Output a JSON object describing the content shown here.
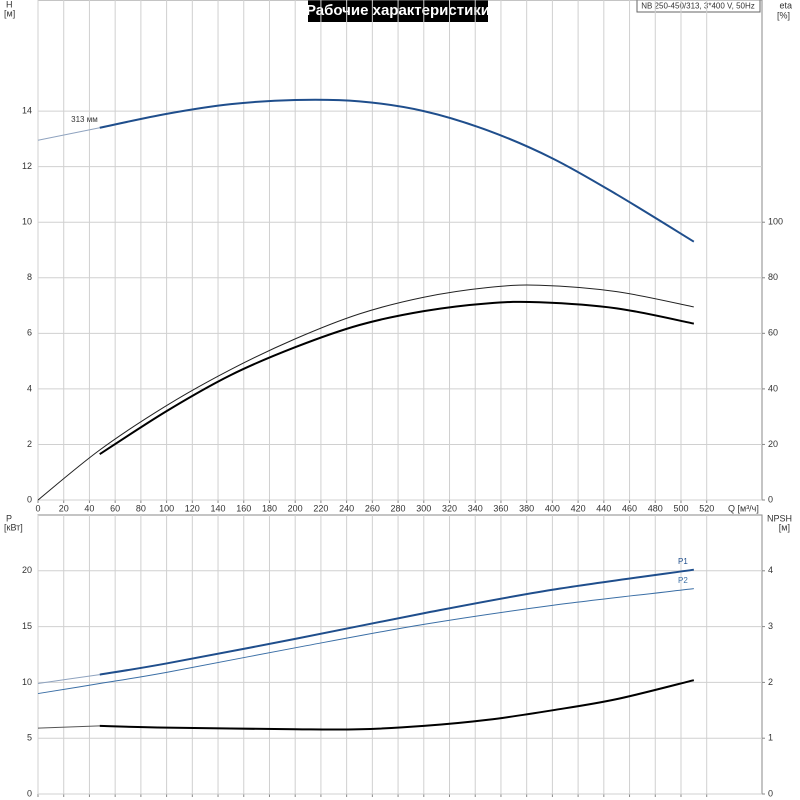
{
  "header": {
    "title": "Рабочие характеристики",
    "model": "NB 250-450/313, 3*400 V, 50Hz"
  },
  "chart_data": [
    {
      "type": "line",
      "ylabel": "H",
      "yunit": "[м]",
      "y2label": "eta",
      "y2unit": "[%]",
      "xlabel": "Q [м³/ч]",
      "xlim": [
        0,
        563
      ],
      "xticks": [
        0,
        20,
        40,
        60,
        80,
        100,
        120,
        140,
        160,
        180,
        200,
        220,
        240,
        260,
        280,
        300,
        320,
        340,
        360,
        380,
        400,
        420,
        440,
        460,
        480,
        500,
        520
      ],
      "xtick_labels": true,
      "ylim": [
        0,
        18
      ],
      "yticks": [
        0,
        2,
        4,
        6,
        8,
        10,
        12,
        14
      ],
      "y2lim": [
        0,
        180
      ],
      "y2ticks": [
        0,
        20,
        40,
        60,
        80,
        100
      ],
      "grid": true,
      "series": [
        {
          "color": "#8fa3bf",
          "width": 1,
          "x": [
            0,
            48
          ],
          "values": [
            12.95,
            13.4
          ]
        },
        {
          "name": "313 мм",
          "label_pos": "start",
          "color": "#1f4e8c",
          "width": 2,
          "x": [
            48,
            100,
            150,
            200,
            250,
            300,
            350,
            400,
            450,
            510
          ],
          "values": [
            13.4,
            13.9,
            14.25,
            14.4,
            14.35,
            14.0,
            13.3,
            12.3,
            11.0,
            9.3
          ]
        },
        {
          "color": "#222222",
          "width": 1,
          "axis": "y2",
          "x": [
            0,
            48,
            100,
            150,
            200,
            250,
            300,
            350,
            390,
            450,
            510
          ],
          "values": [
            0,
            18,
            34,
            47,
            58,
            67,
            73,
            76.5,
            77.3,
            75,
            69.5
          ]
        },
        {
          "color": "#000000",
          "width": 2,
          "axis": "y2",
          "x": [
            48,
            100,
            150,
            200,
            250,
            300,
            350,
            390,
            450,
            510
          ],
          "values": [
            16.5,
            32,
            45,
            55,
            63,
            68,
            70.8,
            71.2,
            69,
            63.5
          ]
        }
      ]
    },
    {
      "type": "line",
      "ylabel": "P",
      "yunit": "[кВт]",
      "y2label": "NPSH",
      "y2unit": "[м]",
      "xlim": [
        0,
        563
      ],
      "xticks": [
        0,
        20,
        40,
        60,
        80,
        100,
        120,
        140,
        160,
        180,
        200,
        220,
        240,
        260,
        280,
        300,
        320,
        340,
        360,
        380,
        400,
        420,
        440,
        460,
        480,
        500,
        520
      ],
      "xtick_labels": false,
      "ylim": [
        0,
        25
      ],
      "yticks": [
        0,
        5,
        10,
        15,
        20
      ],
      "y2lim": [
        0,
        5
      ],
      "y2ticks": [
        0,
        1,
        2,
        3,
        4
      ],
      "grid": true,
      "series": [
        {
          "color": "#8fa3bf",
          "width": 1,
          "x": [
            0,
            48
          ],
          "values": [
            9.9,
            10.7
          ]
        },
        {
          "name": "P1",
          "label_pos": "end",
          "color": "#1f4e8c",
          "width": 2,
          "x": [
            48,
            100,
            200,
            300,
            400,
            510
          ],
          "values": [
            10.7,
            11.7,
            13.9,
            16.2,
            18.3,
            20.1
          ]
        },
        {
          "name": "P2",
          "label_pos": "end",
          "color": "#3a6ea5",
          "width": 1,
          "x": [
            0,
            48,
            100,
            200,
            300,
            400,
            510
          ],
          "values": [
            9.0,
            9.9,
            10.9,
            13.1,
            15.2,
            16.9,
            18.4
          ]
        },
        {
          "color": "#555555",
          "width": 1,
          "axis": "y2",
          "x": [
            0,
            48
          ],
          "values": [
            1.18,
            1.22
          ]
        },
        {
          "color": "#000000",
          "width": 2,
          "axis": "y2",
          "x": [
            48,
            100,
            200,
            250,
            300,
            350,
            400,
            450,
            510
          ],
          "values": [
            1.22,
            1.19,
            1.16,
            1.16,
            1.22,
            1.33,
            1.5,
            1.7,
            2.04
          ]
        }
      ]
    }
  ]
}
